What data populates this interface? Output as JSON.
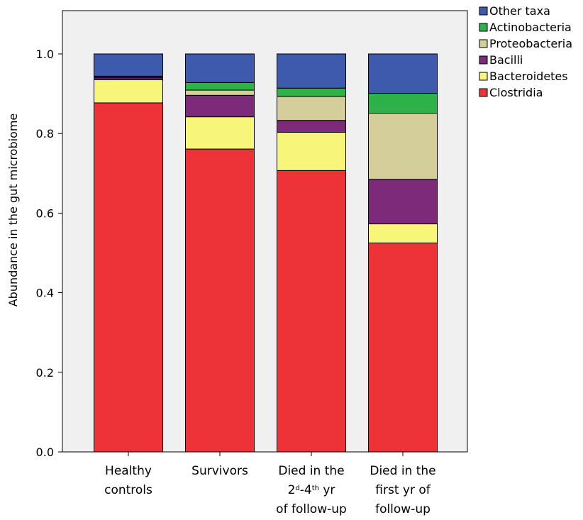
{
  "chart_data": {
    "type": "bar",
    "stacked": true,
    "ylabel": "Abundance in the gut microbiome",
    "xlabel": "",
    "ylim": [
      0,
      1.1
    ],
    "yticks": [
      0.0,
      0.2,
      0.4,
      0.6,
      0.8,
      1.0
    ],
    "ytick_labels": [
      "0.0",
      "0.2",
      "0.4",
      "0.6",
      "0.8",
      "1.0"
    ],
    "grid": false,
    "legend_position": "top-right",
    "background_color": "#f0f0f0",
    "categories": [
      {
        "lines": [
          [
            "Healthy"
          ],
          [
            "controls"
          ]
        ]
      },
      {
        "lines": [
          [
            "Survivors"
          ]
        ]
      },
      {
        "lines": [
          [
            "Died in the"
          ],
          [
            "2",
            {
              "sup": "d"
            },
            "-4",
            {
              "sup": "th"
            },
            " yr"
          ],
          [
            "of follow-up"
          ]
        ]
      },
      {
        "lines": [
          [
            "Died in the"
          ],
          [
            "first yr of"
          ],
          [
            "follow-up"
          ]
        ]
      }
    ],
    "series": [
      {
        "name": "Clostridia",
        "color": "#ee3338",
        "values": [
          0.877,
          0.761,
          0.707,
          0.525
        ]
      },
      {
        "name": "Bacteroidetes",
        "color": "#f7f57a",
        "values": [
          0.058,
          0.081,
          0.096,
          0.048
        ]
      },
      {
        "name": "Bacilli",
        "color": "#7d2a7a",
        "values": [
          0.005,
          0.054,
          0.03,
          0.112
        ]
      },
      {
        "name": "Proteobacteria",
        "color": "#d4cf9a",
        "values": [
          0.002,
          0.013,
          0.06,
          0.166
        ]
      },
      {
        "name": "Actinobacteria",
        "color": "#2db24a",
        "values": [
          0.002,
          0.019,
          0.021,
          0.05
        ]
      },
      {
        "name": "Other taxa",
        "color": "#3d5aad",
        "values": [
          0.056,
          0.072,
          0.086,
          0.099
        ]
      }
    ],
    "legend_order": [
      "Other taxa",
      "Actinobacteria",
      "Proteobacteria",
      "Bacilli",
      "Bacteroidetes",
      "Clostridia"
    ]
  }
}
